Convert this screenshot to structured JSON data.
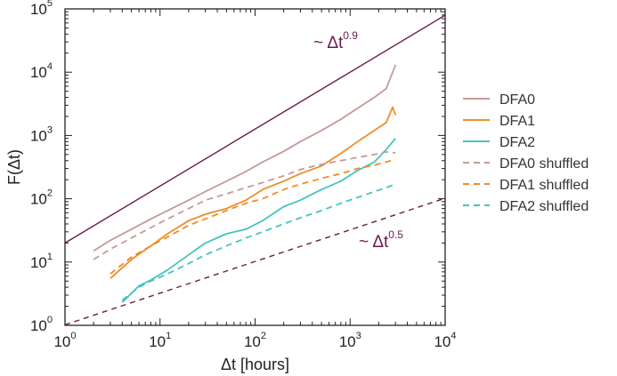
{
  "chart_data": {
    "type": "line",
    "xscale": "log",
    "yscale": "log",
    "xlabel": "Δt  [hours]",
    "ylabel": "F(Δt)",
    "xlim": [
      1,
      10000
    ],
    "ylim": [
      1,
      100000
    ],
    "x_ticks": [
      {
        "base": "10",
        "exp": "0",
        "value": 1
      },
      {
        "base": "10",
        "exp": "1",
        "value": 10
      },
      {
        "base": "10",
        "exp": "2",
        "value": 100
      },
      {
        "base": "10",
        "exp": "3",
        "value": 1000
      },
      {
        "base": "10",
        "exp": "4",
        "value": 10000
      }
    ],
    "y_ticks": [
      {
        "base": "10",
        "exp": "0",
        "value": 1
      },
      {
        "base": "10",
        "exp": "1",
        "value": 10
      },
      {
        "base": "10",
        "exp": "2",
        "value": 100
      },
      {
        "base": "10",
        "exp": "3",
        "value": 1000
      },
      {
        "base": "10",
        "exp": "4",
        "value": 10000
      },
      {
        "base": "10",
        "exp": "5",
        "value": 100000
      }
    ],
    "reference_lines": [
      {
        "name": "slope-0.9",
        "label_prefix": "~ Δt",
        "label_exp": "0.9",
        "slope": 0.9,
        "x": [
          1,
          10000
        ],
        "y": [
          20,
          79500
        ],
        "color": "#6a1b4d",
        "dash": false
      },
      {
        "name": "slope-0.5",
        "label_prefix": "~ Δt",
        "label_exp": "0.5",
        "slope": 0.5,
        "x": [
          1,
          10000
        ],
        "y": [
          1.02,
          102
        ],
        "color": "#6a1b4d",
        "dash": true
      }
    ],
    "series": [
      {
        "name": "DFA0",
        "color": "#c49a98",
        "dash": false,
        "x": [
          2,
          3,
          5,
          8,
          12,
          20,
          30,
          50,
          80,
          120,
          200,
          300,
          500,
          800,
          1200,
          1800,
          2400,
          3000
        ],
        "y": [
          15,
          22,
          33,
          48,
          65,
          95,
          130,
          190,
          270,
          380,
          560,
          800,
          1200,
          1800,
          2700,
          4000,
          5500,
          13000
        ]
      },
      {
        "name": "DFA1",
        "color": "#f08c28",
        "dash": false,
        "x": [
          3,
          5,
          8,
          12,
          20,
          30,
          50,
          80,
          120,
          200,
          300,
          500,
          800,
          1200,
          1800,
          2400,
          2800,
          3000
        ],
        "y": [
          5.5,
          11,
          18,
          28,
          45,
          57,
          70,
          95,
          140,
          190,
          250,
          330,
          520,
          800,
          1200,
          1600,
          2800,
          2100
        ]
      },
      {
        "name": "DFA2",
        "color": "#44c4c0",
        "dash": false,
        "x": [
          4,
          6,
          8,
          12,
          20,
          30,
          50,
          80,
          120,
          200,
          300,
          500,
          800,
          1200,
          1800,
          2400,
          3000
        ],
        "y": [
          2.3,
          4.2,
          5.2,
          7.5,
          13,
          20,
          28,
          33,
          45,
          75,
          95,
          140,
          190,
          280,
          380,
          600,
          900
        ]
      },
      {
        "name": "DFA0 shuffled",
        "color": "#c49a98",
        "dash": true,
        "x": [
          2,
          3,
          5,
          8,
          12,
          20,
          30,
          50,
          80,
          120,
          200,
          300,
          500,
          800,
          1200,
          1800,
          2400,
          3000
        ],
        "y": [
          11,
          16,
          24,
          35,
          48,
          70,
          95,
          120,
          150,
          180,
          230,
          290,
          350,
          400,
          450,
          500,
          550,
          530
        ]
      },
      {
        "name": "DFA1 shuffled",
        "color": "#f08c28",
        "dash": true,
        "x": [
          3,
          5,
          8,
          12,
          20,
          30,
          50,
          80,
          120,
          200,
          300,
          500,
          800,
          1200,
          1800,
          2400,
          3000
        ],
        "y": [
          6.5,
          12,
          18,
          25,
          38,
          48,
          65,
          85,
          100,
          140,
          170,
          210,
          250,
          300,
          340,
          380,
          420
        ]
      },
      {
        "name": "DFA2 shuffled",
        "color": "#44c4c0",
        "dash": true,
        "x": [
          4,
          6,
          8,
          12,
          20,
          30,
          50,
          80,
          120,
          200,
          300,
          500,
          800,
          1200,
          1800,
          2400,
          3000
        ],
        "y": [
          2.5,
          4,
          5,
          6.5,
          9.5,
          13,
          18,
          24,
          30,
          40,
          50,
          65,
          85,
          105,
          130,
          150,
          170
        ]
      }
    ]
  }
}
